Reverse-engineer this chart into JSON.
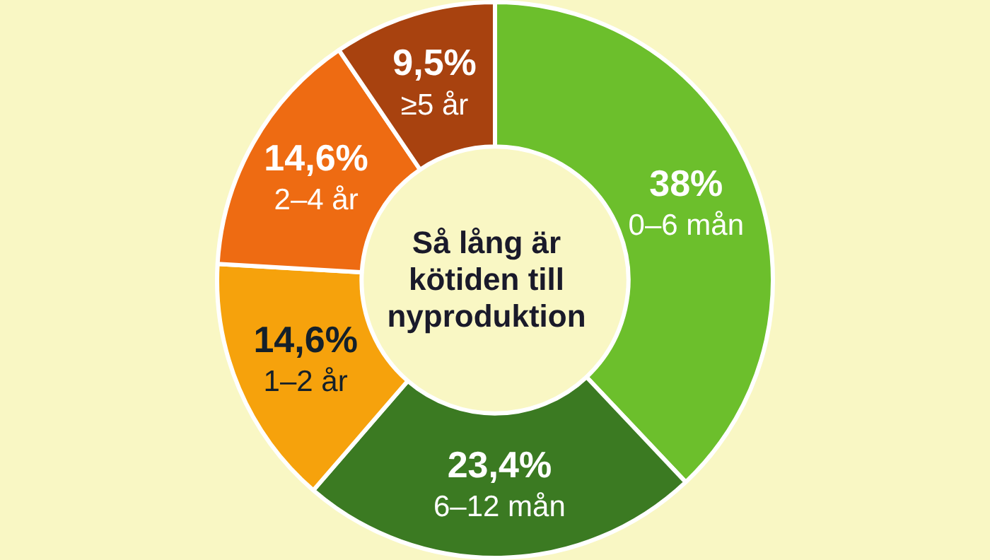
{
  "chart_data": {
    "type": "donut",
    "title": "Så lång är kötiden till nyproduktion",
    "categories": [
      "0–6 mån",
      "6–12 mån",
      "1–2 år",
      "2–4 år",
      "≥5 år"
    ],
    "values": [
      38,
      23.4,
      14.6,
      14.6,
      9.5
    ],
    "value_labels": [
      "38%",
      "23,4%",
      "14,6%",
      "14,6%",
      "9,5%"
    ],
    "colors": [
      "#6cbf2c",
      "#3b7a22",
      "#f6a20c",
      "#ee6b12",
      "#a8420f"
    ],
    "legend": false
  }
}
